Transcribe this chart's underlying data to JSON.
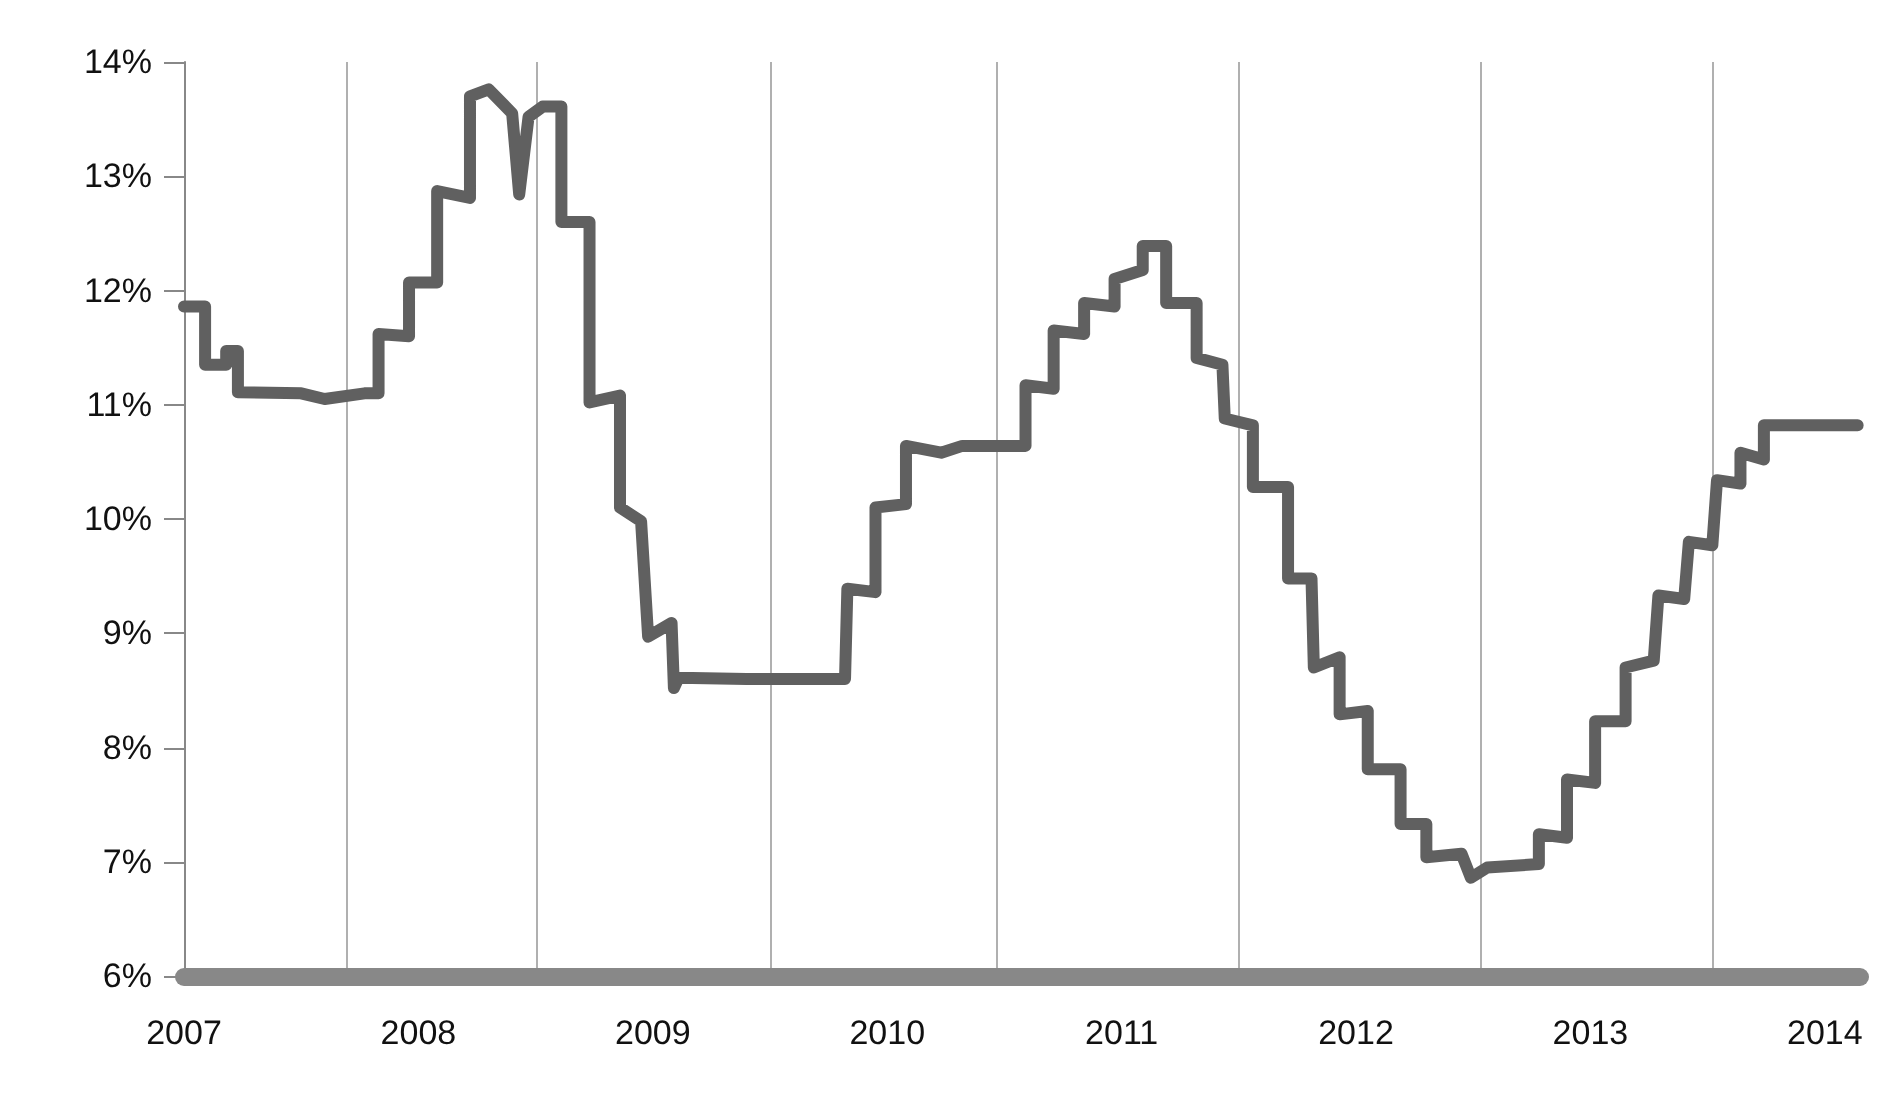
{
  "chart_data": {
    "type": "line",
    "x": [
      2007.0,
      2007.09,
      2007.09,
      2007.18,
      2007.18,
      2007.23,
      2007.23,
      2007.5,
      2007.6,
      2007.77,
      2007.83,
      2007.83,
      2007.96,
      2007.96,
      2008.08,
      2008.08,
      2008.22,
      2008.22,
      2008.3,
      2008.4,
      2008.43,
      2008.47,
      2008.53,
      2008.61,
      2008.61,
      2008.73,
      2008.73,
      2008.86,
      2008.86,
      2008.95,
      2008.98,
      2009.08,
      2009.09,
      2009.11,
      2009.4,
      2009.82,
      2009.83,
      2009.95,
      2009.95,
      2010.08,
      2010.08,
      2010.23,
      2010.32,
      2010.59,
      2010.59,
      2010.71,
      2010.71,
      2010.84,
      2010.84,
      2010.97,
      2010.97,
      2011.09,
      2011.09,
      2011.19,
      2011.19,
      2011.32,
      2011.32,
      2011.43,
      2011.44,
      2011.56,
      2011.56,
      2011.71,
      2011.71,
      2011.81,
      2011.82,
      2011.93,
      2011.93,
      2012.05,
      2012.05,
      2012.19,
      2012.19,
      2012.3,
      2012.3,
      2012.45,
      2012.49,
      2012.56,
      2012.78,
      2012.78,
      2012.9,
      2012.9,
      2013.02,
      2013.02,
      2013.15,
      2013.15,
      2013.27,
      2013.29,
      2013.4,
      2013.42,
      2013.52,
      2013.54,
      2013.64,
      2013.64,
      2013.74,
      2013.74,
      2014.14
    ],
    "series": [
      {
        "color": "#606060",
        "values": [
          11.86,
          11.86,
          11.35,
          11.35,
          11.47,
          11.47,
          11.11,
          11.1,
          11.05,
          11.1,
          11.1,
          11.62,
          11.6,
          12.07,
          12.07,
          12.87,
          12.81,
          13.7,
          13.76,
          13.55,
          12.84,
          13.52,
          13.61,
          13.61,
          12.6,
          12.6,
          11.02,
          11.08,
          10.1,
          9.98,
          8.97,
          9.09,
          8.52,
          8.61,
          8.6,
          8.6,
          9.39,
          9.36,
          10.1,
          10.13,
          10.64,
          10.58,
          10.64,
          10.64,
          11.17,
          11.14,
          11.65,
          11.62,
          11.89,
          11.86,
          12.1,
          12.18,
          12.39,
          12.39,
          11.89,
          11.89,
          11.41,
          11.35,
          10.88,
          10.82,
          10.28,
          10.28,
          9.48,
          9.48,
          8.7,
          8.79,
          8.29,
          8.32,
          7.81,
          7.81,
          7.33,
          7.33,
          7.04,
          7.07,
          6.86,
          6.95,
          6.98,
          7.24,
          7.21,
          7.72,
          7.69,
          8.23,
          8.23,
          8.7,
          8.76,
          9.33,
          9.3,
          9.8,
          9.77,
          10.34,
          10.31,
          10.58,
          10.52,
          10.82,
          10.82
        ]
      }
    ],
    "xlim": [
      2007,
      2014.15
    ],
    "xticks": [
      2007,
      2008,
      2009,
      2010,
      2011,
      2012,
      2013,
      2014,
      {
        "value": 2007.69,
        "label": null
      },
      {
        "value": 2008.5,
        "label": null
      },
      {
        "value": 2009.5,
        "label": null
      },
      {
        "value": 2010.47,
        "label": null
      },
      {
        "value": 2011.5,
        "label": null
      },
      {
        "value": 2012.53,
        "label": null
      },
      {
        "value": 2013.52,
        "label": null
      }
    ],
    "ylim": [
      6,
      14
    ],
    "yticks": [
      {
        "value": 6,
        "label": "6%"
      },
      {
        "value": 7,
        "label": "7%"
      },
      {
        "value": 8,
        "label": "8%"
      },
      {
        "value": 9,
        "label": "9%"
      },
      {
        "value": 10,
        "label": "10%"
      },
      {
        "value": 11,
        "label": "11%"
      },
      {
        "value": 12,
        "label": "12%"
      },
      {
        "value": 13,
        "label": "13%"
      },
      {
        "value": 14,
        "label": "14%"
      }
    ],
    "grid": "x",
    "marker": "none",
    "line_style": "solid"
  }
}
